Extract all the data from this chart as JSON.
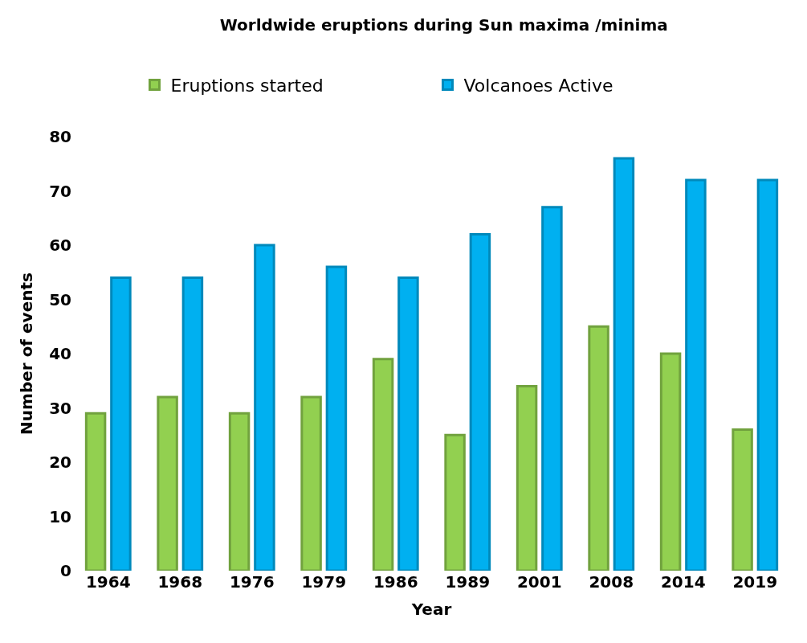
{
  "chart_data": {
    "type": "bar",
    "title": "Worldwide eruptions during Sun maxima /minima",
    "xlabel": "Year",
    "ylabel": "Number of events",
    "categories": [
      "1964",
      "1968",
      "1976",
      "1979",
      "1986",
      "1989",
      "2001",
      "2008",
      "2014",
      "2019"
    ],
    "series": [
      {
        "name": "Eruptions started",
        "color": "#92d050",
        "values": [
          29,
          32,
          29,
          32,
          39,
          25,
          34,
          45,
          40,
          26
        ]
      },
      {
        "name": "Volcanoes Active",
        "color": "#00b0f0",
        "values": [
          54,
          54,
          60,
          56,
          54,
          62,
          67,
          76,
          72,
          72
        ]
      }
    ],
    "ylim": [
      0,
      80
    ],
    "yticks": [
      0,
      10,
      20,
      30,
      40,
      50,
      60,
      70,
      80
    ],
    "legend": "top"
  }
}
